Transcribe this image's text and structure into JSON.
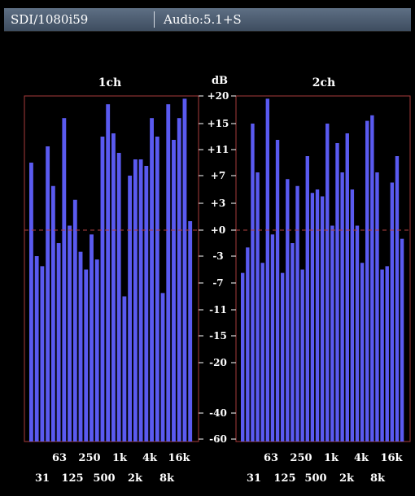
{
  "status_bar": {
    "format": "SDI/1080i59",
    "audio": "Audio:5.1+S"
  },
  "chart_data": [
    {
      "type": "bar",
      "title": "1ch",
      "ylabel": "dB",
      "tick_labels_top": [
        "63",
        "250",
        "1k",
        "4k",
        "16k"
      ],
      "tick_labels_bottom": [
        "31",
        "125",
        "500",
        "2k",
        "8k"
      ],
      "values": [
        9,
        -3,
        -4.5,
        11.5,
        5.5,
        -1.5,
        16,
        0.5,
        3.5,
        -2.5,
        -5,
        -0.5,
        -3.5,
        13,
        18.5,
        13.5,
        10.5,
        -9,
        7,
        9.5,
        9.5,
        8.5,
        16,
        13,
        -8.5,
        18.5,
        12.5,
        16,
        19.5,
        1
      ]
    },
    {
      "type": "bar",
      "title": "2ch",
      "ylabel": "",
      "tick_labels_top": [
        "63",
        "250",
        "1k",
        "4k",
        "16k"
      ],
      "tick_labels_bottom": [
        "31",
        "125",
        "500",
        "2k",
        "8k"
      ],
      "values": [
        -5.5,
        -2,
        15,
        7.5,
        -4,
        19.5,
        -0.5,
        12.5,
        -5.5,
        6.5,
        -1.5,
        5.5,
        -5,
        10,
        4.5,
        5,
        4,
        15,
        0.5,
        12,
        7.5,
        13.5,
        5,
        0.5,
        -4,
        15.5,
        16.5,
        7.5,
        -5,
        -4.5,
        6,
        10,
        -1
      ]
    }
  ],
  "scale": {
    "ticks": [
      "+20",
      "+15",
      "+11",
      "+7",
      "+3",
      "+0",
      "-3",
      "-7",
      "-11",
      "-15",
      "-20",
      "-40",
      "-60"
    ],
    "tick_values": [
      20,
      15,
      11,
      7,
      3,
      0,
      -3,
      -7,
      -11,
      -15,
      -20,
      -40,
      -60
    ]
  },
  "colors": {
    "bar": "#5a5af0",
    "frame": "#a83c3c",
    "reference": "#b04040",
    "text": "#ffffff",
    "background": "#000000"
  }
}
